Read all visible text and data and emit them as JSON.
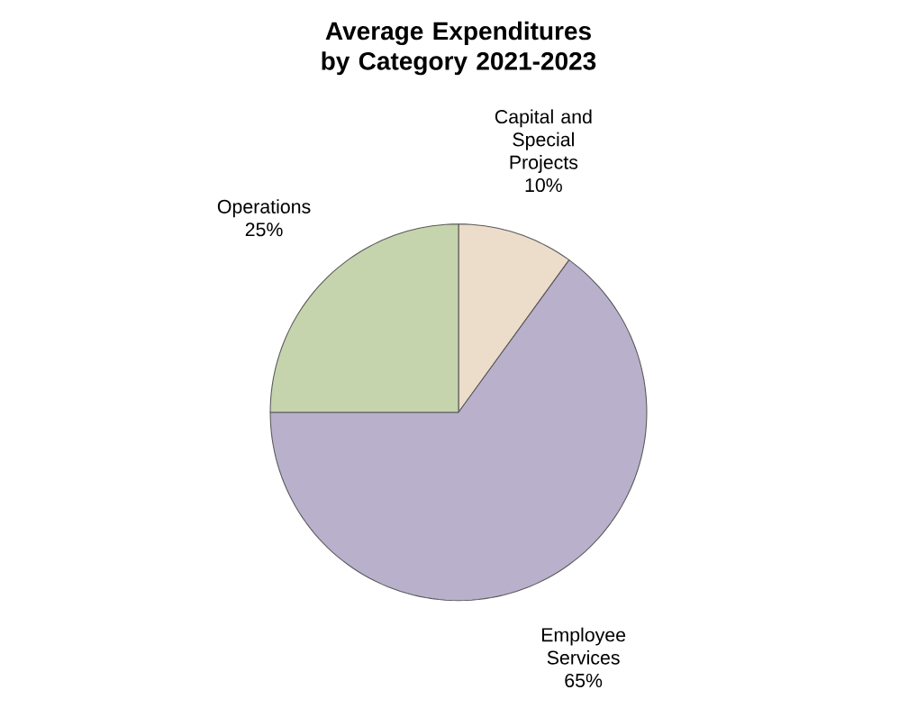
{
  "chart_data": {
    "type": "pie",
    "title": "Average Expenditures by Category 2021-2023",
    "categories": [
      "Capital and Special Projects",
      "Employee Services",
      "Operations"
    ],
    "values": [
      10,
      65,
      25
    ],
    "value_labels": [
      "10%",
      "65%",
      "25%"
    ],
    "colors": [
      "#ecdcca",
      "#b9b0cc",
      "#c6d4ad"
    ]
  }
}
